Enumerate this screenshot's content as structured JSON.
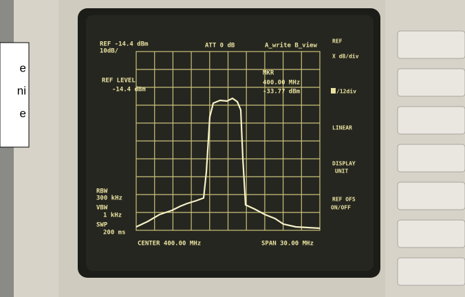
{
  "screen": {
    "top_left": {
      "ref": "REF -14.4 dBm",
      "scale": "10dB/"
    },
    "att": "ATT 0 dB",
    "trace_mode": "A_write B_view",
    "ref_level": {
      "label": "REF LEVEL",
      "value": "-14.4 dBm"
    },
    "marker": {
      "label": "MKR",
      "freq": "400.00  MHz",
      "level": "-33.77  dBm"
    },
    "rbw": {
      "label": "RBW",
      "value": "300 kHz"
    },
    "vbw": {
      "label": "VBW",
      "value": "1 kHz"
    },
    "swp": {
      "label": "SWP",
      "value": "200 ms"
    },
    "center": "CENTER 400.00 MHz",
    "span": "SPAN 30.00 MHz"
  },
  "softkeys": [
    "REF",
    "X dB/div",
    "/12div",
    "LINEAR",
    "DISPLAY",
    "UNIT",
    "REF OFS",
    "ON/OFF"
  ],
  "overlay": [
    "e",
    "ni",
    "e"
  ]
}
